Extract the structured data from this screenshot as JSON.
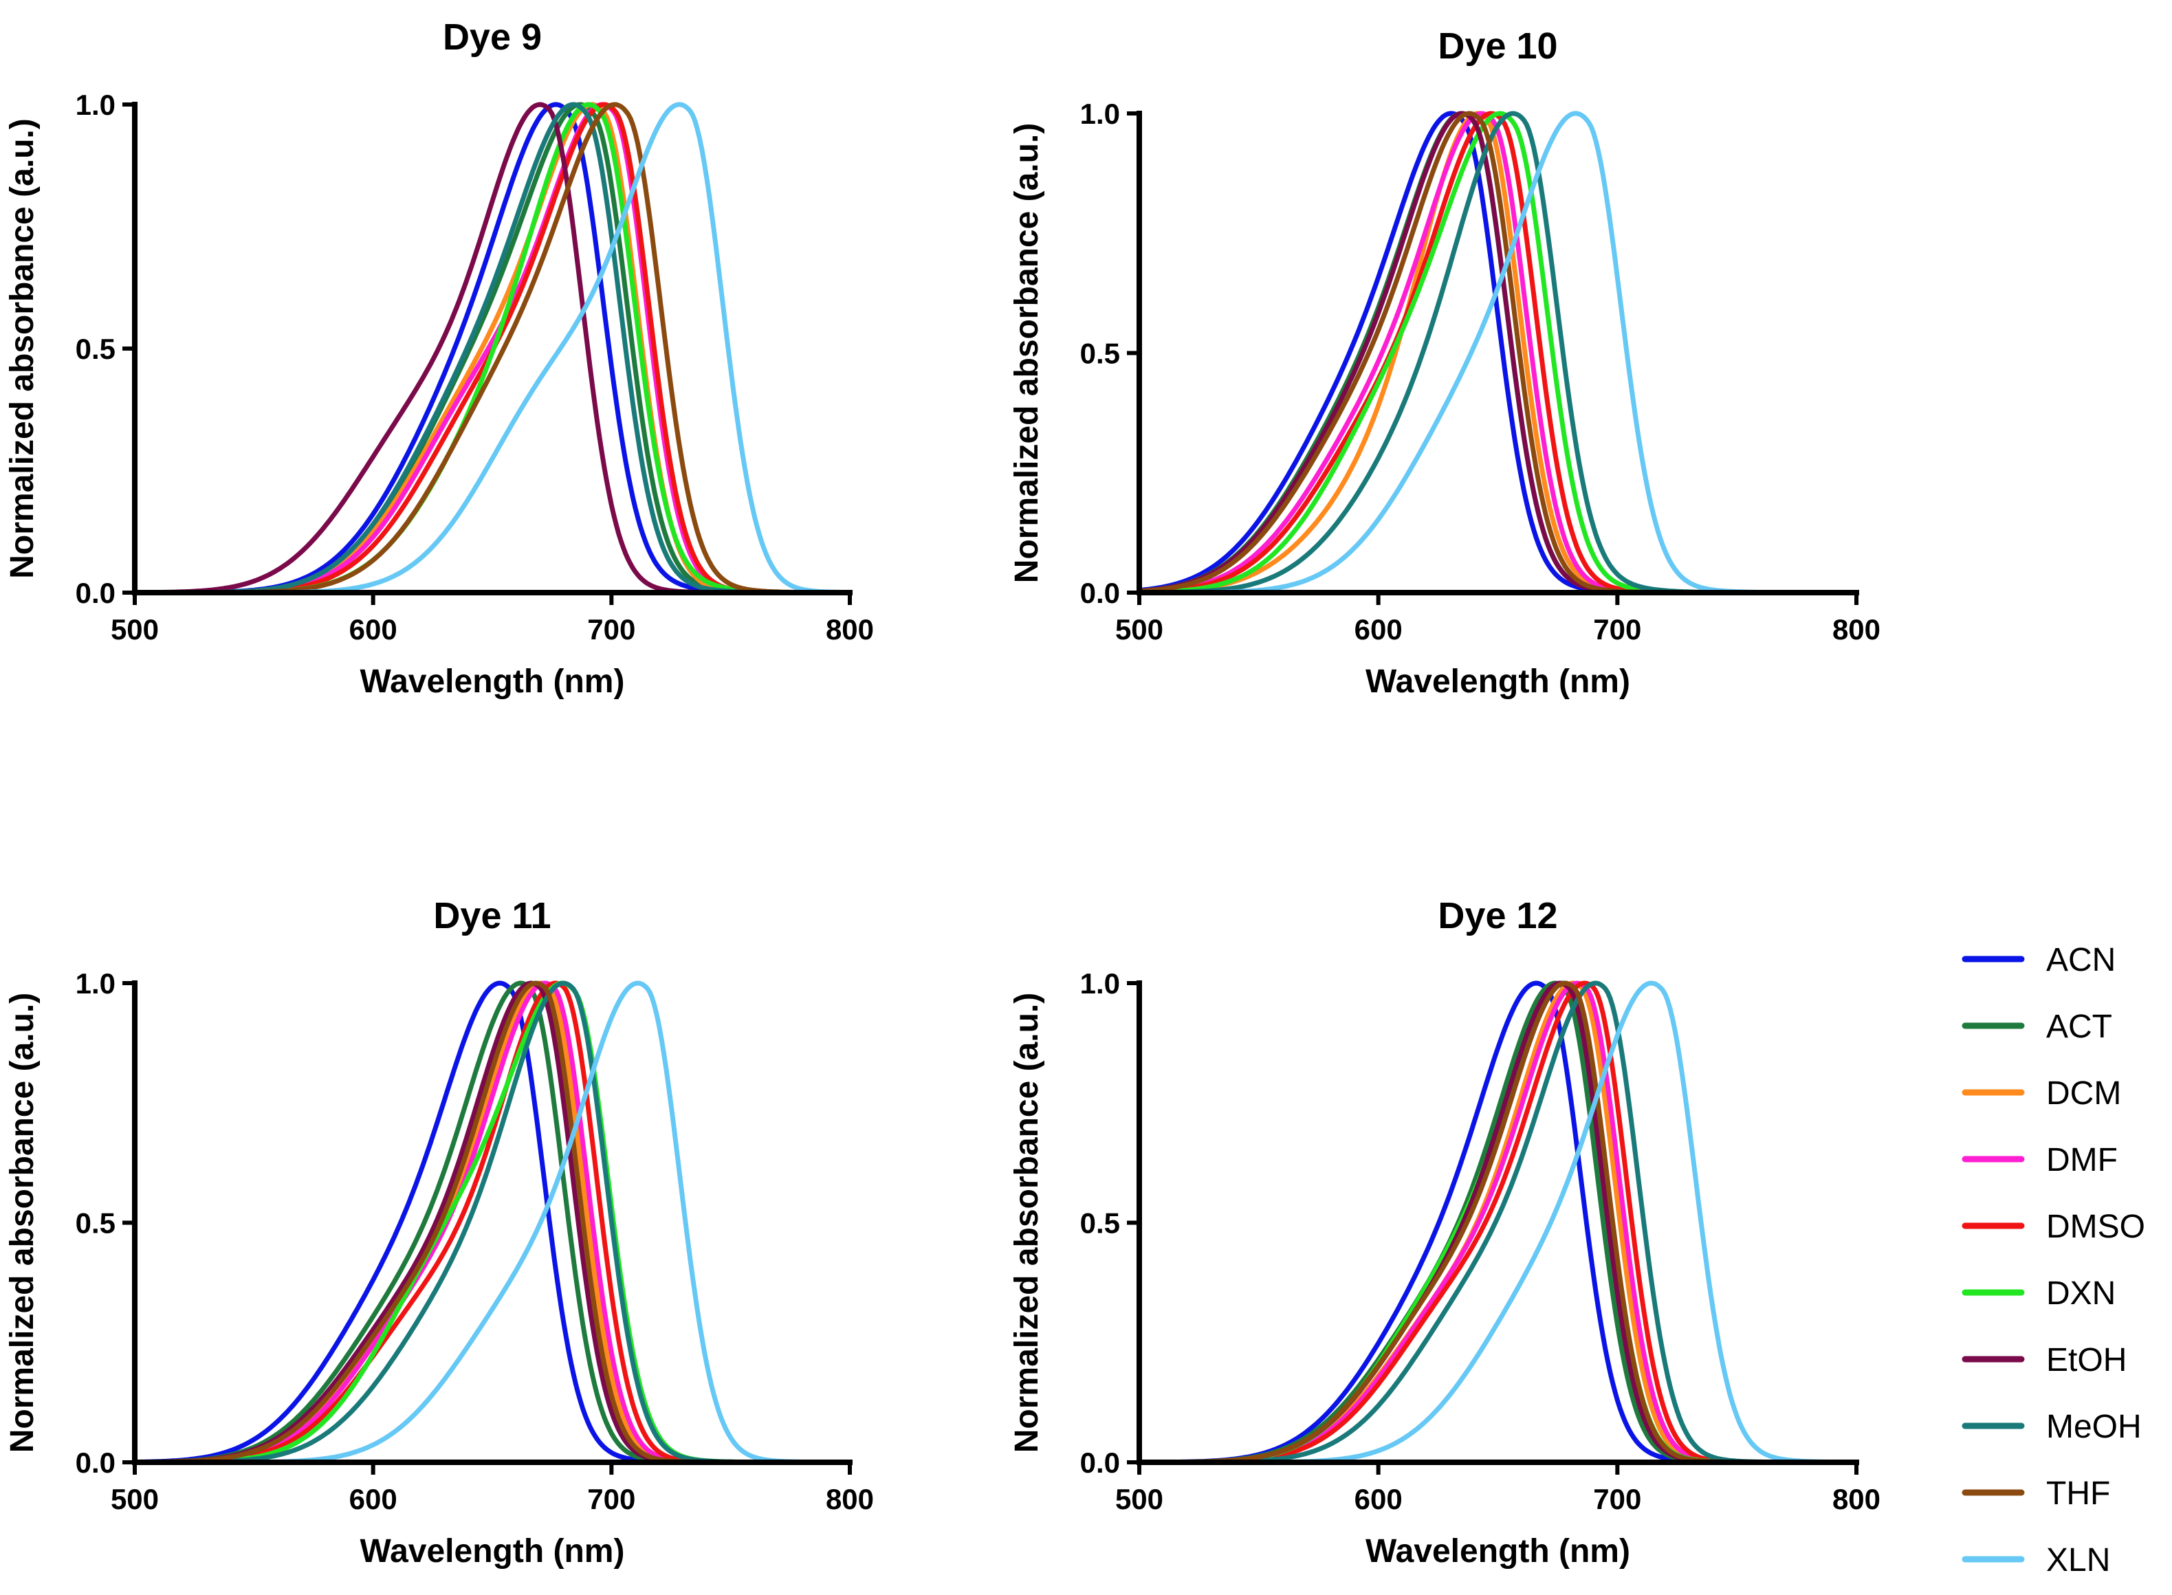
{
  "chart_data": {
    "type": "line",
    "xlabel": "Wavelength (nm)",
    "ylabel": "Normalized absorbance (a.u.)",
    "xlim": [
      500,
      800
    ],
    "ylim": [
      0,
      1
    ],
    "xticks": [
      "500",
      "600",
      "700",
      "800"
    ],
    "yticks": [
      "0.0",
      "0.5",
      "1.0"
    ],
    "legend": {
      "placement": "bottom-right",
      "entries": [
        {
          "name": "ACN",
          "color": "#0a14e6"
        },
        {
          "name": "ACT",
          "color": "#1f7a3d"
        },
        {
          "name": "DCM",
          "color": "#ff8a1e"
        },
        {
          "name": "DMF",
          "color": "#ff1fd2"
        },
        {
          "name": "DMSO",
          "color": "#f01414"
        },
        {
          "name": "DXN",
          "color": "#22e622"
        },
        {
          "name": "EtOH",
          "color": "#7a0a4a"
        },
        {
          "name": "MeOH",
          "color": "#1a7a7a"
        },
        {
          "name": "THF",
          "color": "#8a4a10"
        },
        {
          "name": "XLN",
          "color": "#66c8f5"
        }
      ]
    },
    "panels": [
      {
        "title": "Dye 9",
        "series": [
          {
            "name": "ACN",
            "peak": 683,
            "shoulder_x": 645,
            "shoulder_h": 0.56
          },
          {
            "name": "ACT",
            "peak": 693,
            "shoulder_x": 650,
            "shoulder_h": 0.56
          },
          {
            "name": "DCM",
            "peak": 697,
            "shoulder_x": 650,
            "shoulder_h": 0.5
          },
          {
            "name": "DMF",
            "peak": 701,
            "shoulder_x": 652,
            "shoulder_h": 0.5
          },
          {
            "name": "DMSO",
            "peak": 702,
            "shoulder_x": 655,
            "shoulder_h": 0.5
          },
          {
            "name": "DXN",
            "peak": 696,
            "shoulder_x": 660,
            "shoulder_h": 0.5
          },
          {
            "name": "EtOH",
            "peak": 674,
            "shoulder_x": 625,
            "shoulder_h": 0.42
          },
          {
            "name": "MeOH",
            "peak": 690,
            "shoulder_x": 648,
            "shoulder_h": 0.54
          },
          {
            "name": "THF",
            "peak": 707,
            "shoulder_x": 662,
            "shoulder_h": 0.53
          },
          {
            "name": "XLN",
            "peak": 733,
            "shoulder_x": 681,
            "shoulder_h": 0.5
          }
        ]
      },
      {
        "title": "Dye 10",
        "series": [
          {
            "name": "ACN",
            "peak": 636,
            "shoulder_x": 595,
            "shoulder_h": 0.5
          },
          {
            "name": "ACT",
            "peak": 640,
            "shoulder_x": 598,
            "shoulder_h": 0.48
          },
          {
            "name": "DCM",
            "peak": 645,
            "shoulder_x": 610,
            "shoulder_h": 0.3
          },
          {
            "name": "DMF",
            "peak": 648,
            "shoulder_x": 605,
            "shoulder_h": 0.45
          },
          {
            "name": "DMSO",
            "peak": 652,
            "shoulder_x": 608,
            "shoulder_h": 0.45
          },
          {
            "name": "DXN",
            "peak": 657,
            "shoulder_x": 615,
            "shoulder_h": 0.55
          },
          {
            "name": "EtOH",
            "peak": 640,
            "shoulder_x": 598,
            "shoulder_h": 0.46
          },
          {
            "name": "MeOH",
            "peak": 661,
            "shoulder_x": 625,
            "shoulder_h": 0.42
          },
          {
            "name": "THF",
            "peak": 643,
            "shoulder_x": 600,
            "shoulder_h": 0.46
          },
          {
            "name": "XLN",
            "peak": 688,
            "shoulder_x": 645,
            "shoulder_h": 0.5
          }
        ]
      },
      {
        "title": "Dye 11",
        "series": [
          {
            "name": "ACN",
            "peak": 658,
            "shoulder_x": 615,
            "shoulder_h": 0.45
          },
          {
            "name": "ACT",
            "peak": 666,
            "shoulder_x": 620,
            "shoulder_h": 0.4
          },
          {
            "name": "DCM",
            "peak": 674,
            "shoulder_x": 625,
            "shoulder_h": 0.38
          },
          {
            "name": "DMF",
            "peak": 676,
            "shoulder_x": 628,
            "shoulder_h": 0.4
          },
          {
            "name": "DMSO",
            "peak": 680,
            "shoulder_x": 630,
            "shoulder_h": 0.38
          },
          {
            "name": "DXN",
            "peak": 685,
            "shoulder_x": 638,
            "shoulder_h": 0.55
          },
          {
            "name": "EtOH",
            "peak": 670,
            "shoulder_x": 622,
            "shoulder_h": 0.38
          },
          {
            "name": "MeOH",
            "peak": 684,
            "shoulder_x": 640,
            "shoulder_h": 0.4
          },
          {
            "name": "THF",
            "peak": 672,
            "shoulder_x": 624,
            "shoulder_h": 0.38
          },
          {
            "name": "XLN",
            "peak": 715,
            "shoulder_x": 668,
            "shoulder_h": 0.4
          }
        ]
      },
      {
        "title": "Dye 12",
        "series": [
          {
            "name": "ACN",
            "peak": 671,
            "shoulder_x": 630,
            "shoulder_h": 0.45
          },
          {
            "name": "ACT",
            "peak": 678,
            "shoulder_x": 632,
            "shoulder_h": 0.4
          },
          {
            "name": "DCM",
            "peak": 685,
            "shoulder_x": 636,
            "shoulder_h": 0.38
          },
          {
            "name": "DMF",
            "peak": 687,
            "shoulder_x": 638,
            "shoulder_h": 0.4
          },
          {
            "name": "DMSO",
            "peak": 690,
            "shoulder_x": 640,
            "shoulder_h": 0.4
          },
          {
            "name": "DXN",
            "peak": 682,
            "shoulder_x": 636,
            "shoulder_h": 0.45
          },
          {
            "name": "EtOH",
            "peak": 680,
            "shoulder_x": 634,
            "shoulder_h": 0.4
          },
          {
            "name": "MeOH",
            "peak": 695,
            "shoulder_x": 648,
            "shoulder_h": 0.42
          },
          {
            "name": "THF",
            "peak": 682,
            "shoulder_x": 634,
            "shoulder_h": 0.4
          },
          {
            "name": "XLN",
            "peak": 719,
            "shoulder_x": 675,
            "shoulder_h": 0.45
          }
        ]
      }
    ]
  }
}
